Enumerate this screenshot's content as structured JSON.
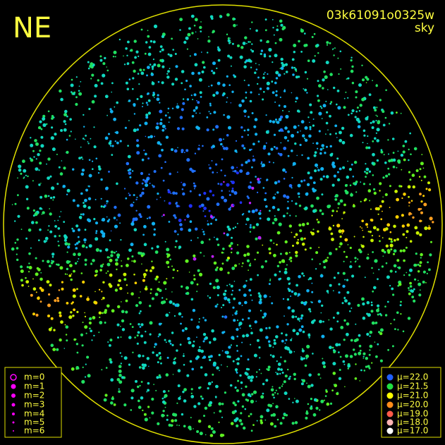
{
  "header": {
    "label": "NE",
    "id": "03k61091o0325w",
    "band": "sky"
  },
  "legend_magnitude": [
    "m=0",
    "m=1",
    "m=2",
    "m=3",
    "m=4",
    "m=5",
    "m=6"
  ],
  "legend_brightness": [
    "μ=22.0",
    "μ=21.5",
    "μ=21.0",
    "μ=20.0",
    "μ=19.0",
    "μ=18.0",
    "μ=17.0"
  ]
}
